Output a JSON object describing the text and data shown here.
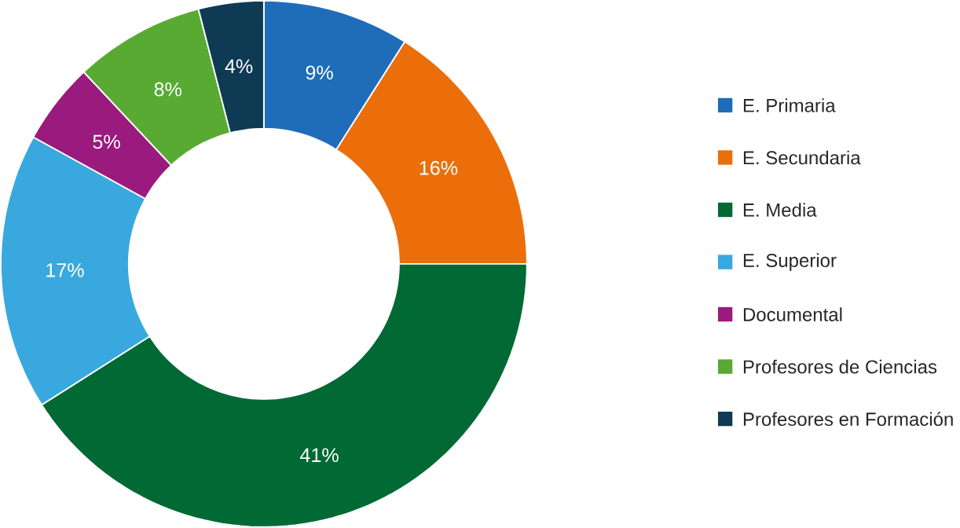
{
  "chart_data": {
    "type": "donut",
    "categories": [
      "E. Primaria",
      "E. Secundaria",
      "E. Media",
      "E. Superior",
      "Documental",
      "Profesores de Ciencias",
      "Profesores en Formación"
    ],
    "values": [
      9,
      16,
      41,
      17,
      5,
      8,
      4
    ],
    "colors": [
      "#1f6db8",
      "#eb6e0b",
      "#006934",
      "#39a8df",
      "#9b1a7d",
      "#58aa33",
      "#0f3a54"
    ],
    "value_labels": [
      "9%",
      "16%",
      "41%",
      "17%",
      "5%",
      "8%",
      "4%"
    ],
    "legend": "right"
  }
}
